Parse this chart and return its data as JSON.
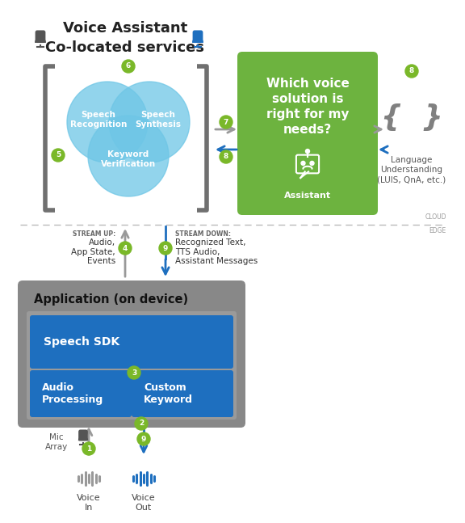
{
  "title": "Voice Assistant\nCo-located services",
  "bg_color": "#ffffff",
  "green_color": "#7AB829",
  "blue_circle_color": "#6EC6E6",
  "green_box_color": "#6DB33F",
  "bracket_color": "#707070",
  "app_bg_color": "#888888",
  "app_inner_color": "#999999",
  "sdk_color": "#1E6FBF",
  "blue_arrow": "#1E6FBF",
  "gray_arrow": "#888888",
  "lu_brace_color": "#888888",
  "stream_up_label": "STREAM UP:",
  "stream_up_text": "Audio,\nApp State,\nEvents",
  "stream_down_label": "STREAM DOWN:",
  "stream_down_text": "Recognized Text,\nTTS Audio,\nAssistant Messages",
  "cloud_text": "CLOUD",
  "edge_text": "EDGE",
  "app_title": "Application (on device)",
  "sdk_text": "Speech SDK",
  "audio_proc_text": "Audio\nProcessing",
  "custom_kw_text": "Custom\nKeyword",
  "cloud_box_text": "Which voice\nsolution is\nright for my\nneeds?",
  "assistant_text": "Assistant",
  "lu_text": "Language\nUnderstanding\n(LUIS, QnA, etc.)",
  "voice_in_text": "Voice\nIn",
  "voice_out_text": "Voice\nOut",
  "mic_array_text": "Mic\nArray"
}
